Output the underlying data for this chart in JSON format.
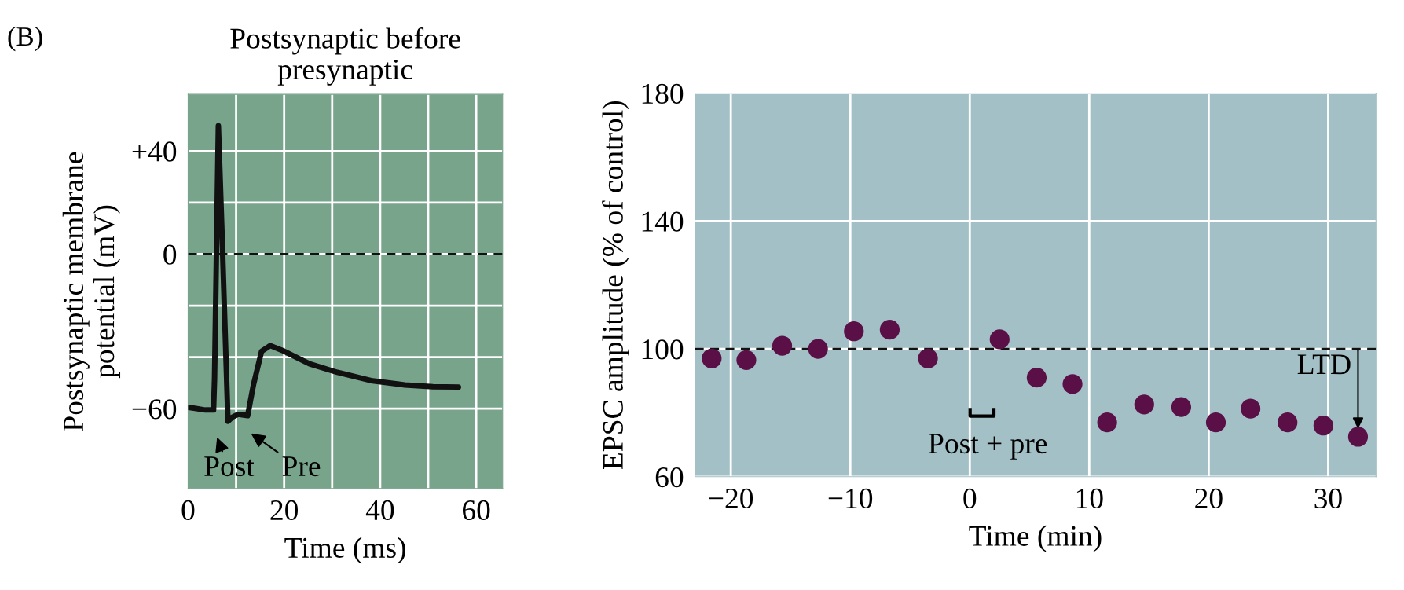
{
  "chart_data": [
    {
      "type": "line",
      "title": "Postsynaptic before\npresynaptic",
      "xlabel": "Time (ms)",
      "ylabel": "Postsynaptic membrane\npotential (mV)",
      "series": [
        {
          "color": "#111111",
          "x": [
            0.1,
            3.6,
            5.3,
            5.5,
            6.3,
            7.1,
            8.3,
            9.2,
            10.4,
            12.4,
            13.6,
            15.3,
            17.1,
            20,
            25.3,
            31.1,
            38.1,
            45.1,
            51,
            56.3
          ],
          "values": [
            -59.5,
            -60.5,
            -60.5,
            -48.6,
            49.8,
            5.8,
            -64.9,
            -63.3,
            -62.2,
            -62.7,
            -50.8,
            -37.7,
            -35.5,
            -37.7,
            -42.6,
            -45.9,
            -49.1,
            -50.8,
            -51.5,
            -51.6
          ]
        }
      ],
      "xlim": [
        0,
        65.5
      ],
      "ylim": [
        -91,
        62
      ],
      "xticks": [
        0,
        {
          "value": 10,
          "label": null
        },
        20,
        {
          "value": 30,
          "label": null
        },
        40,
        {
          "value": 50,
          "label": null
        },
        60
      ],
      "yticks": [
        {
          "value": -60,
          "label": "−60"
        },
        {
          "value": -40,
          "label": null
        },
        {
          "value": -20,
          "label": null
        },
        0,
        {
          "value": 20,
          "label": null
        },
        {
          "value": 40,
          "label": "+40"
        }
      ],
      "grid": true,
      "marker": "none",
      "line_style": "solid",
      "ref_lines": [
        {
          "axis": "y",
          "value": 0,
          "line_style": "dashed",
          "color": "#111111"
        }
      ],
      "annotations": [
        "(B)",
        "Post",
        "Pre"
      ]
    },
    {
      "type": "scatter",
      "xlabel": "Time (min)",
      "ylabel": "EPSC amplitude (% of control)",
      "series": [
        {
          "color": "#5a0f46",
          "x": [
            -21.6,
            -18.7,
            -15.7,
            -12.7,
            -9.7,
            -6.7,
            -3.5,
            2.5,
            5.6,
            8.6,
            11.5,
            14.6,
            17.7,
            20.6,
            23.5,
            26.6,
            29.6,
            32.5
          ],
          "values": [
            97,
            96.5,
            101,
            100,
            105.5,
            106,
            97,
            103,
            91,
            89,
            77,
            82.6,
            81.8,
            77,
            81.3,
            77,
            76,
            72.5
          ]
        }
      ],
      "xlim": [
        -23,
        34
      ],
      "ylim": [
        60,
        180
      ],
      "xticks": [
        {
          "value": -20,
          "label": "−20"
        },
        {
          "value": -10,
          "label": "−10"
        },
        0,
        10,
        20,
        30
      ],
      "yticks": [
        60,
        100,
        140,
        180
      ],
      "grid": true,
      "marker": "circle",
      "ref_lines": [
        {
          "axis": "y",
          "value": 100,
          "line_style": "dashed",
          "color": "#111111"
        }
      ],
      "annotations": [
        "Post + pre",
        {
          "text": "LTD",
          "x": 32.5,
          "y": 72.5
        }
      ]
    }
  ]
}
